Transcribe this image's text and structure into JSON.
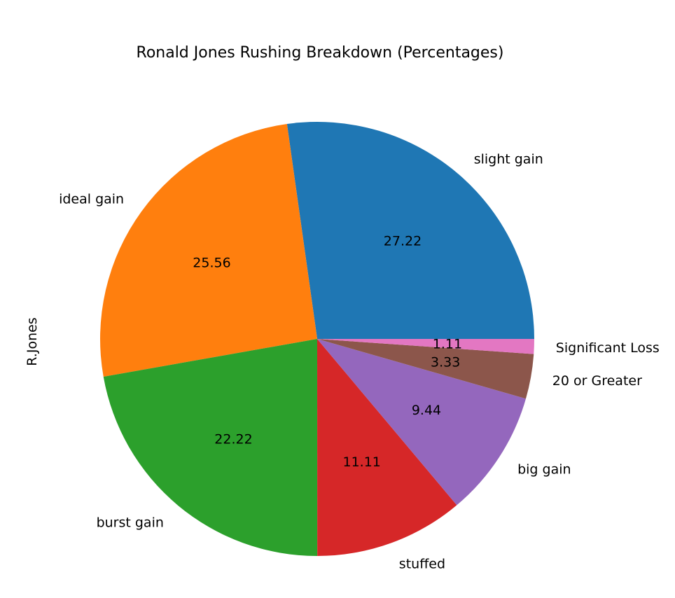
{
  "chart_data": {
    "type": "pie",
    "title": "Ronald Jones Rushing Breakdown (Percentages)",
    "ylabel": "R.Jones",
    "start_angle_deg": 0,
    "direction": "counterclockwise",
    "slices": [
      {
        "label": "slight gain",
        "value": 27.22,
        "value_label": "27.22",
        "color": "#1f77b4"
      },
      {
        "label": "ideal gain",
        "value": 25.56,
        "value_label": "25.56",
        "color": "#ff7f0e"
      },
      {
        "label": "burst gain",
        "value": 22.22,
        "value_label": "22.22",
        "color": "#2ca02c"
      },
      {
        "label": "stuffed",
        "value": 11.11,
        "value_label": "11.11",
        "color": "#d62728"
      },
      {
        "label": "big gain",
        "value": 9.44,
        "value_label": "9.44",
        "color": "#9467bd"
      },
      {
        "label": "20 or Greater",
        "value": 3.33,
        "value_label": "3.33",
        "color": "#8c564b"
      },
      {
        "label": "Significant Loss",
        "value": 1.11,
        "value_label": "1.11",
        "color": "#e377c2"
      }
    ]
  }
}
